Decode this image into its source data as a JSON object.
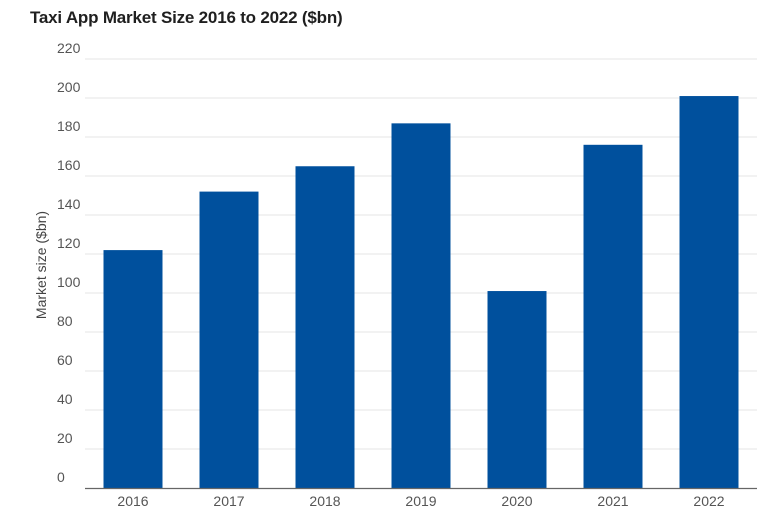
{
  "chart_data": {
    "type": "bar",
    "title": "Taxi App Market Size 2016 to 2022 ($bn)",
    "xlabel": "",
    "ylabel": "Market size ($bn)",
    "categories": [
      "2016",
      "2017",
      "2018",
      "2019",
      "2020",
      "2021",
      "2022"
    ],
    "values": [
      122,
      152,
      165,
      187,
      101,
      176,
      201
    ],
    "ylim": [
      0,
      220
    ],
    "yticks": [
      0,
      20,
      40,
      60,
      80,
      100,
      120,
      140,
      160,
      180,
      200,
      220
    ],
    "grid": true,
    "bar_color": "#00509d"
  }
}
